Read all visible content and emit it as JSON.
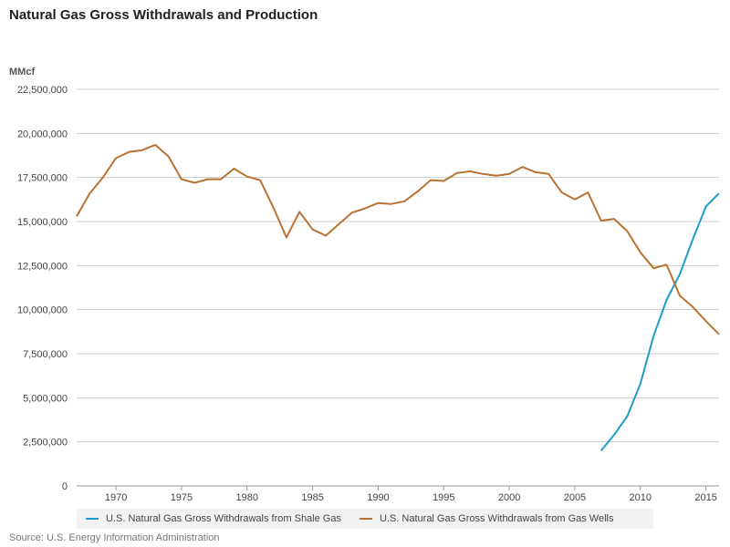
{
  "title": "Natural Gas Gross Withdrawals and Production",
  "unit": "MMcf",
  "source": "Source: U.S. Energy Information Administration",
  "chart_data": {
    "type": "line",
    "title": "Natural Gas Gross Withdrawals and Production",
    "ylabel": "MMcf",
    "xlabel": "",
    "xlim": [
      1967,
      2016
    ],
    "ylim": [
      0,
      22500000
    ],
    "grid": true,
    "legend_position": "bottom",
    "x_ticks": [
      1970,
      1975,
      1980,
      1985,
      1990,
      1995,
      2000,
      2005,
      2010,
      2015
    ],
    "y_ticks": [
      0,
      2500000,
      5000000,
      7500000,
      10000000,
      12500000,
      15000000,
      17500000,
      20000000,
      22500000
    ],
    "y_tick_labels": [
      "0",
      "2,500,000",
      "5,000,000",
      "7,500,000",
      "10,000,000",
      "12,500,000",
      "15,000,000",
      "17,500,000",
      "20,000,000",
      "22,500,000"
    ],
    "series": [
      {
        "name": "U.S. Natural Gas Gross Withdrawals from Shale Gas",
        "color": "#1f9bcc",
        "x": [
          2007,
          2008,
          2009,
          2010,
          2011,
          2012,
          2013,
          2014,
          2015,
          2016
        ],
        "values": [
          2000000,
          2900000,
          3950000,
          5800000,
          8500000,
          10550000,
          12000000,
          14000000,
          15850000,
          16600000
        ]
      },
      {
        "name": "U.S. Natural Gas Gross Withdrawals from Gas Wells",
        "color": "#b87333",
        "x": [
          1967,
          1968,
          1969,
          1970,
          1971,
          1972,
          1973,
          1974,
          1975,
          1976,
          1977,
          1978,
          1979,
          1980,
          1981,
          1982,
          1983,
          1984,
          1985,
          1986,
          1987,
          1988,
          1989,
          1990,
          1991,
          1992,
          1993,
          1994,
          1995,
          1996,
          1997,
          1998,
          1999,
          2000,
          2001,
          2002,
          2003,
          2004,
          2005,
          2006,
          2007,
          2008,
          2009,
          2010,
          2011,
          2012,
          2013,
          2014,
          2015,
          2016
        ],
        "values": [
          15300000,
          16600000,
          17500000,
          18600000,
          18950000,
          19050000,
          19350000,
          18700000,
          17400000,
          17200000,
          17400000,
          17400000,
          18000000,
          17550000,
          17350000,
          15800000,
          14100000,
          15550000,
          14550000,
          14200000,
          14850000,
          15500000,
          15750000,
          16050000,
          16000000,
          16150000,
          16700000,
          17350000,
          17300000,
          17750000,
          17850000,
          17700000,
          17600000,
          17700000,
          18100000,
          17800000,
          17700000,
          16650000,
          16250000,
          16650000,
          15050000,
          15150000,
          14450000,
          13250000,
          12350000,
          12550000,
          10800000,
          10150000,
          9350000,
          8600000
        ]
      }
    ]
  }
}
